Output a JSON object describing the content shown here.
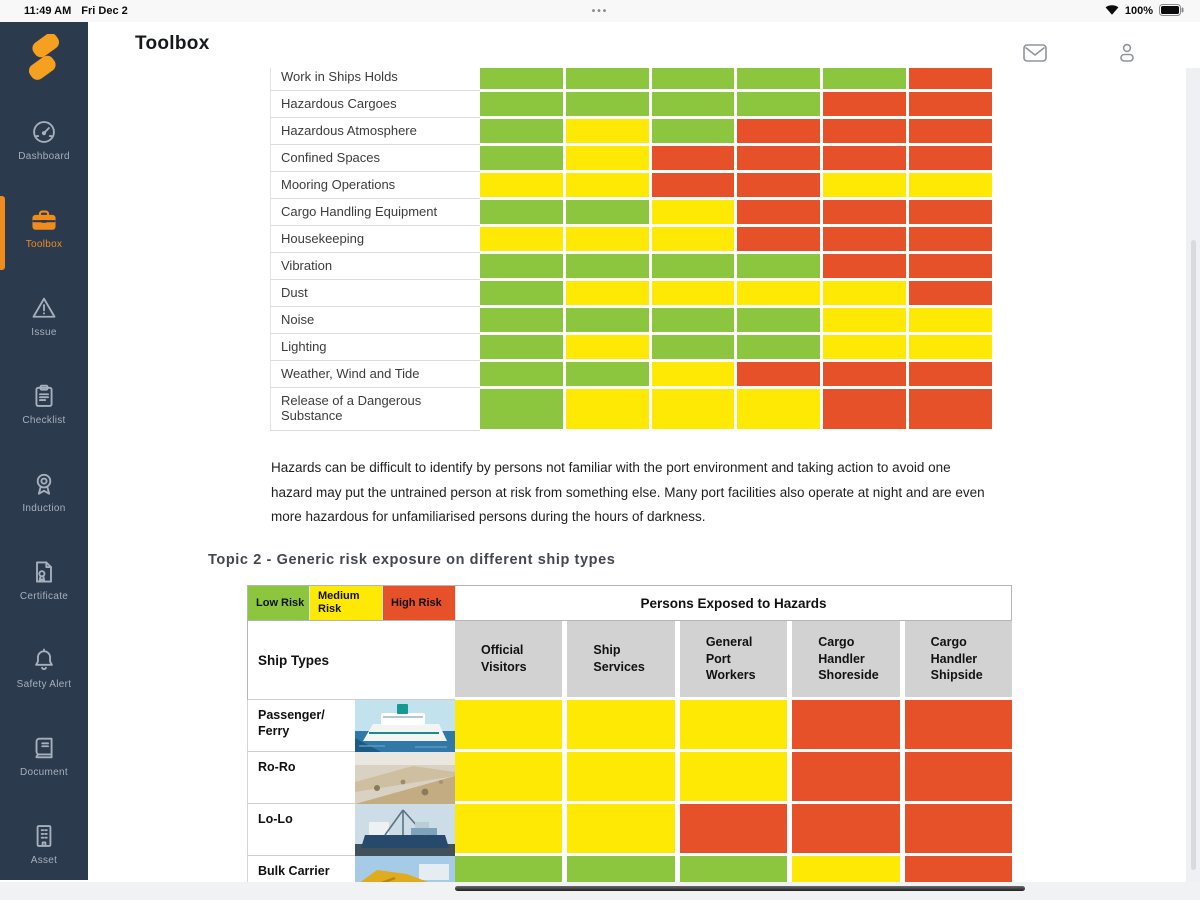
{
  "status_bar": {
    "time": "11:49 AM",
    "date": "Fri Dec 2",
    "multitask_dots": "•••",
    "battery_pct": "100%"
  },
  "header": {
    "title": "Toolbox"
  },
  "sidebar": {
    "items": [
      {
        "label": "Dashboard",
        "icon": "gauge",
        "active": false
      },
      {
        "label": "Toolbox",
        "icon": "toolbox",
        "active": true
      },
      {
        "label": "Issue",
        "icon": "warning-triangle",
        "active": false
      },
      {
        "label": "Checklist",
        "icon": "clipboard",
        "active": false
      },
      {
        "label": "Induction",
        "icon": "rosette",
        "active": false
      },
      {
        "label": "Certificate",
        "icon": "certificate",
        "active": false
      },
      {
        "label": "Safety Alert",
        "icon": "bell",
        "active": false
      },
      {
        "label": "Document",
        "icon": "book",
        "active": false
      },
      {
        "label": "Asset",
        "icon": "building",
        "active": false
      }
    ]
  },
  "risk_colors": {
    "low": "#8cc63e",
    "medium": "#fde903",
    "high": "#e6512a"
  },
  "document": {
    "hazard_matrix": {
      "rows": [
        {
          "label": "Work in Ships Holds",
          "risks": [
            "low",
            "low",
            "low",
            "low",
            "low",
            "high"
          ]
        },
        {
          "label": "Hazardous Cargoes",
          "risks": [
            "low",
            "low",
            "low",
            "low",
            "high",
            "high"
          ]
        },
        {
          "label": "Hazardous Atmosphere",
          "risks": [
            "low",
            "medium",
            "low",
            "high",
            "high",
            "high"
          ]
        },
        {
          "label": "Confined Spaces",
          "risks": [
            "low",
            "medium",
            "high",
            "high",
            "high",
            "high"
          ]
        },
        {
          "label": "Mooring Operations",
          "risks": [
            "medium",
            "medium",
            "high",
            "high",
            "medium",
            "medium"
          ]
        },
        {
          "label": "Cargo Handling Equipment",
          "risks": [
            "low",
            "low",
            "medium",
            "high",
            "high",
            "high"
          ]
        },
        {
          "label": "Housekeeping",
          "risks": [
            "medium",
            "medium",
            "medium",
            "high",
            "high",
            "high"
          ]
        },
        {
          "label": "Vibration",
          "risks": [
            "low",
            "low",
            "low",
            "low",
            "high",
            "high"
          ]
        },
        {
          "label": "Dust",
          "risks": [
            "low",
            "medium",
            "medium",
            "medium",
            "medium",
            "high"
          ]
        },
        {
          "label": "Noise",
          "risks": [
            "low",
            "low",
            "low",
            "low",
            "medium",
            "medium"
          ]
        },
        {
          "label": "Lighting",
          "risks": [
            "low",
            "medium",
            "low",
            "low",
            "medium",
            "medium"
          ]
        },
        {
          "label": "Weather, Wind and Tide",
          "risks": [
            "low",
            "low",
            "medium",
            "high",
            "high",
            "high"
          ]
        },
        {
          "label": "Release of a Dangerous Substance",
          "risks": [
            "low",
            "medium",
            "medium",
            "medium",
            "high",
            "high"
          ]
        }
      ]
    },
    "paragraph": "Hazards can be difficult to identify by persons not familiar with the port environment and taking action to avoid one hazard may put the untrained person at risk from something else. Many port facilities also operate at night and are even more hazardous for unfamiliarised persons during the hours of darkness.",
    "topic_heading": "Topic 2 - Generic risk exposure on different ship types",
    "ship_table": {
      "legend": [
        {
          "label": "Low Risk",
          "level": "low"
        },
        {
          "label": "Medium Risk",
          "level": "medium"
        },
        {
          "label": "High Risk",
          "level": "high"
        }
      ],
      "persons_header": "Persons Exposed to Hazards",
      "ship_types_label": "Ship Types",
      "person_columns": [
        "Official Visitors",
        "Ship Services",
        "General Port Workers",
        "Cargo Handler Shoreside",
        "Cargo Handler Shipside"
      ],
      "rows": [
        {
          "label": "Passenger/ Ferry",
          "image": "ferry-photo",
          "risks": [
            "medium",
            "medium",
            "medium",
            "high",
            "high"
          ]
        },
        {
          "label": "Ro-Ro",
          "image": "roro-photo",
          "risks": [
            "medium",
            "medium",
            "medium",
            "high",
            "high"
          ]
        },
        {
          "label": "Lo-Lo",
          "image": "lolo-photo",
          "risks": [
            "medium",
            "medium",
            "high",
            "high",
            "high"
          ]
        },
        {
          "label": "Bulk Carrier",
          "image": "bulk-carrier-photo",
          "risks": [
            "low",
            "low",
            "low",
            "medium",
            "high"
          ]
        }
      ]
    }
  }
}
